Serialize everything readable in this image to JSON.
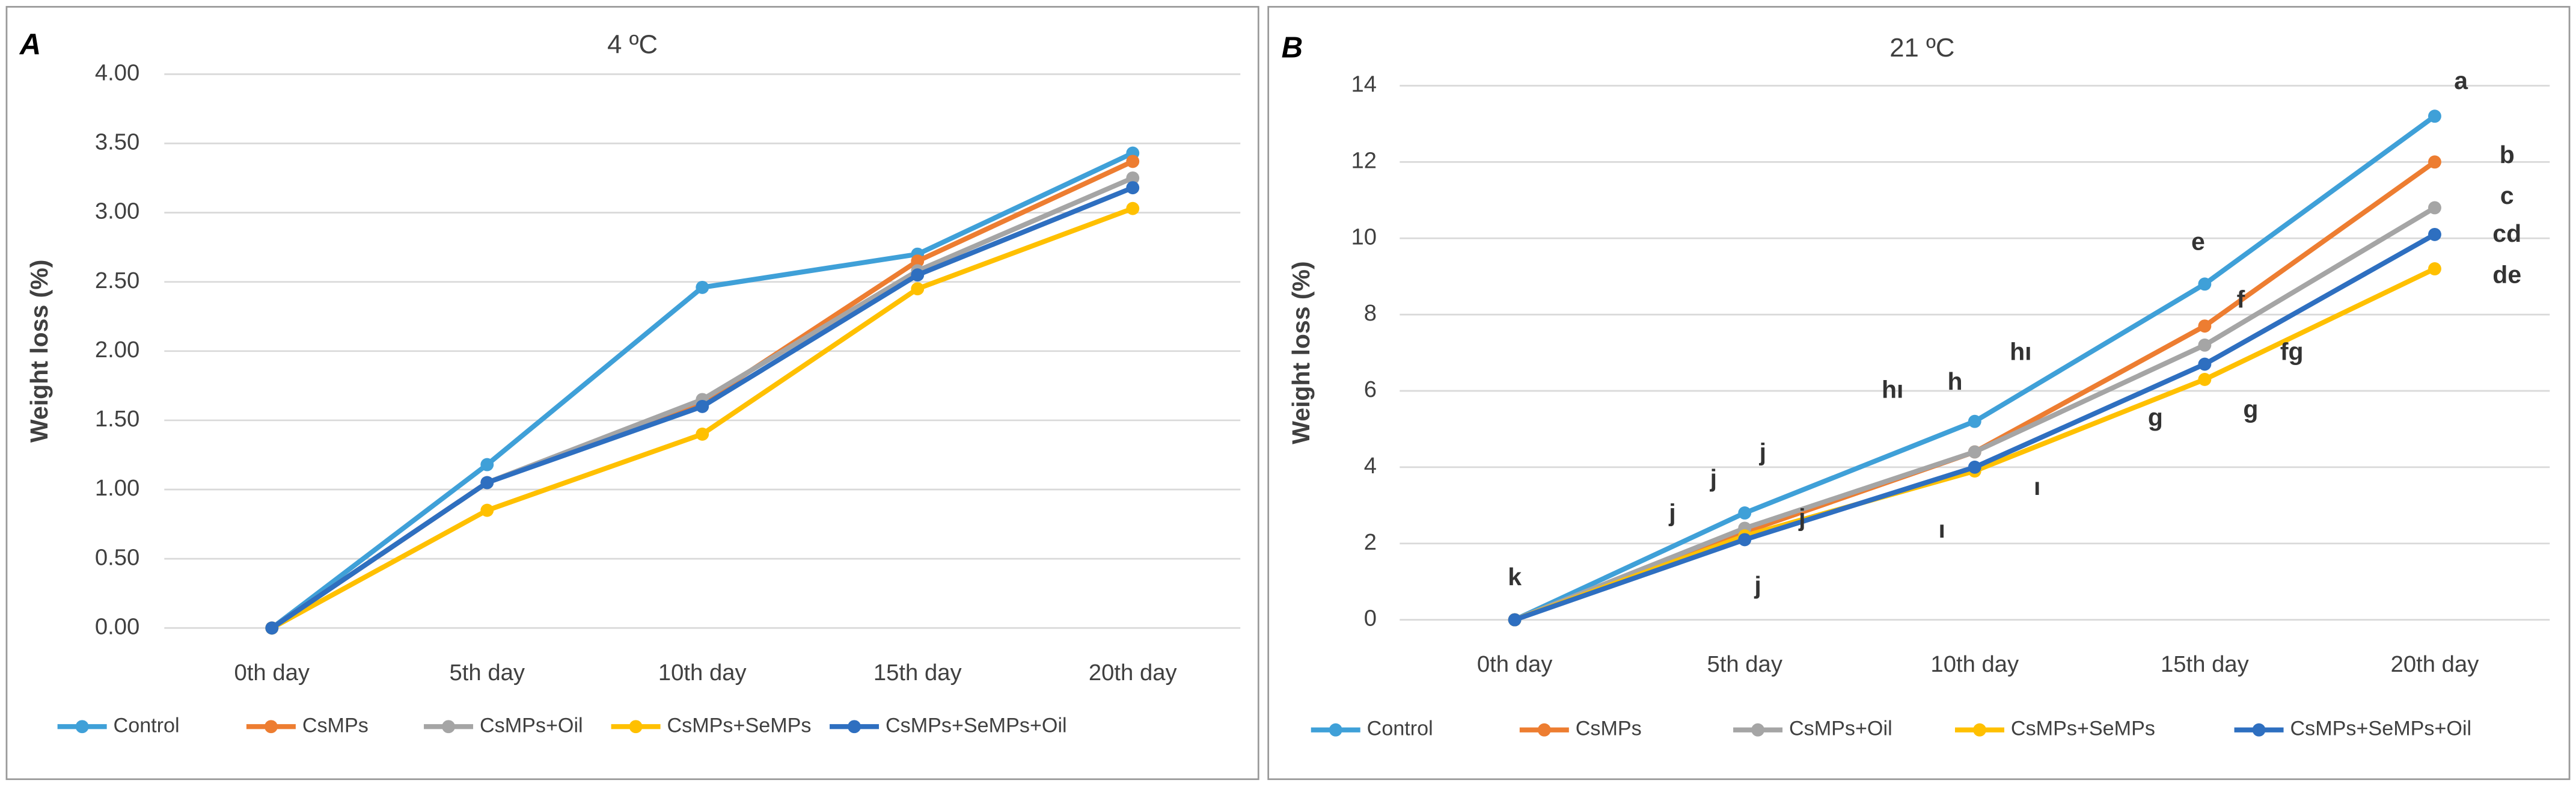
{
  "chart_data": [
    {
      "type": "line",
      "panel_label": "A",
      "title": "4 ºC",
      "y_label": "Weight loss (%)",
      "categories": [
        "0th day",
        "5th day",
        "10th day",
        "15th day",
        "20th day"
      ],
      "series": [
        {
          "name": "Control",
          "color": "#3fa0d8",
          "values": [
            0,
            1.18,
            2.46,
            2.7,
            3.43
          ]
        },
        {
          "name": "CsMPs",
          "color": "#ed7d31",
          "values": [
            0,
            1.05,
            1.63,
            2.65,
            3.37
          ]
        },
        {
          "name": "CsMPs+Oil",
          "color": "#a5a5a5",
          "values": [
            0,
            1.05,
            1.65,
            2.58,
            3.25
          ]
        },
        {
          "name": "CsMPs+SeMPs",
          "color": "#ffc000",
          "values": [
            0,
            0.85,
            1.4,
            2.45,
            3.03
          ]
        },
        {
          "name": "CsMPs+SeMPs+Oil",
          "color": "#2e6fc0",
          "values": [
            0,
            1.05,
            1.6,
            2.55,
            3.18
          ]
        }
      ],
      "ylim": [
        0,
        4
      ],
      "yticks": [
        {
          "value": 0,
          "label": "0.00"
        },
        {
          "value": 0.5,
          "label": "0.50"
        },
        {
          "value": 1,
          "label": "1.00"
        },
        {
          "value": 1.5,
          "label": "1.50"
        },
        {
          "value": 2,
          "label": "2.00"
        },
        {
          "value": 2.5,
          "label": "2.50"
        },
        {
          "value": 3,
          "label": "3.00"
        },
        {
          "value": 3.5,
          "label": "3.50"
        },
        {
          "value": 4,
          "label": "4.00"
        }
      ],
      "grid": true,
      "legend": "bottom"
    },
    {
      "type": "line",
      "panel_label": "B",
      "title": "21 ºC",
      "y_label": "Weight loss (%)",
      "categories": [
        "0th day",
        "5th day",
        "10th day",
        "15th day",
        "20th day"
      ],
      "series": [
        {
          "name": "Control",
          "color": "#3fa0d8",
          "values": [
            0,
            2.8,
            5.2,
            8.8,
            13.2
          ]
        },
        {
          "name": "CsMPs",
          "color": "#ed7d31",
          "values": [
            0,
            2.3,
            4.4,
            7.7,
            12.0
          ]
        },
        {
          "name": "CsMPs+Oil",
          "color": "#a5a5a5",
          "values": [
            0,
            2.4,
            4.4,
            7.2,
            10.8
          ]
        },
        {
          "name": "CsMPs+SeMPs",
          "color": "#ffc000",
          "values": [
            0,
            2.2,
            3.9,
            6.3,
            9.2
          ]
        },
        {
          "name": "CsMPs+SeMPs+Oil",
          "color": "#2e6fc0",
          "values": [
            0,
            2.1,
            4.0,
            6.7,
            10.1
          ]
        }
      ],
      "ylim": [
        0,
        14
      ],
      "yticks": [
        0,
        2,
        4,
        6,
        8,
        10,
        12,
        14
      ],
      "grid": true,
      "legend": "bottom",
      "annotations": [
        "a",
        "b",
        "c",
        "cd",
        "de",
        "e",
        "f",
        "fg",
        "g",
        "g",
        "h",
        "hı",
        "hı",
        "ı",
        "ı",
        "j",
        "j",
        "j",
        "j",
        "j",
        "k"
      ]
    }
  ]
}
